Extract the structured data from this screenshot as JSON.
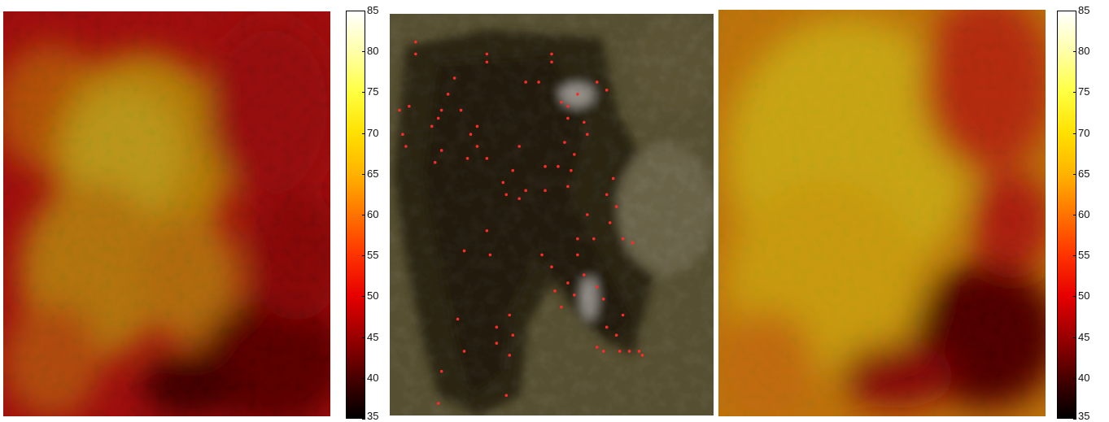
{
  "chart_data": [
    {
      "type": "heatmap",
      "description_panel": "left",
      "colormap": "hot",
      "range": [
        35,
        85
      ],
      "colorbar_ticks": [
        35,
        40,
        45,
        50,
        55,
        60,
        65,
        70,
        75,
        80,
        85
      ],
      "tick_labels": [
        "35",
        "40",
        "45",
        "50",
        "55",
        "60",
        "65",
        "70",
        "75",
        "80",
        "85"
      ]
    },
    {
      "type": "scatter",
      "description_panel": "center",
      "marker_color": "#ff2a2a",
      "points": [
        [
          0.08,
          0.07
        ],
        [
          0.08,
          0.1
        ],
        [
          0.3,
          0.1
        ],
        [
          0.3,
          0.12
        ],
        [
          0.5,
          0.1
        ],
        [
          0.5,
          0.12
        ],
        [
          0.2,
          0.16
        ],
        [
          0.18,
          0.2
        ],
        [
          0.06,
          0.23
        ],
        [
          0.03,
          0.24
        ],
        [
          0.16,
          0.24
        ],
        [
          0.15,
          0.26
        ],
        [
          0.22,
          0.24
        ],
        [
          0.42,
          0.17
        ],
        [
          0.46,
          0.17
        ],
        [
          0.64,
          0.17
        ],
        [
          0.67,
          0.19
        ],
        [
          0.53,
          0.22
        ],
        [
          0.55,
          0.23
        ],
        [
          0.58,
          0.2
        ],
        [
          0.04,
          0.3
        ],
        [
          0.05,
          0.33
        ],
        [
          0.13,
          0.28
        ],
        [
          0.16,
          0.34
        ],
        [
          0.27,
          0.28
        ],
        [
          0.25,
          0.3
        ],
        [
          0.27,
          0.33
        ],
        [
          0.24,
          0.36
        ],
        [
          0.14,
          0.37
        ],
        [
          0.3,
          0.36
        ],
        [
          0.4,
          0.33
        ],
        [
          0.55,
          0.26
        ],
        [
          0.6,
          0.27
        ],
        [
          0.61,
          0.3
        ],
        [
          0.54,
          0.32
        ],
        [
          0.57,
          0.35
        ],
        [
          0.48,
          0.38
        ],
        [
          0.52,
          0.38
        ],
        [
          0.56,
          0.39
        ],
        [
          0.38,
          0.39
        ],
        [
          0.35,
          0.42
        ],
        [
          0.42,
          0.44
        ],
        [
          0.36,
          0.45
        ],
        [
          0.4,
          0.46
        ],
        [
          0.48,
          0.44
        ],
        [
          0.55,
          0.43
        ],
        [
          0.69,
          0.41
        ],
        [
          0.67,
          0.45
        ],
        [
          0.61,
          0.5
        ],
        [
          0.68,
          0.52
        ],
        [
          0.7,
          0.48
        ],
        [
          0.58,
          0.56
        ],
        [
          0.63,
          0.56
        ],
        [
          0.72,
          0.56
        ],
        [
          0.75,
          0.57
        ],
        [
          0.3,
          0.54
        ],
        [
          0.23,
          0.59
        ],
        [
          0.31,
          0.6
        ],
        [
          0.47,
          0.6
        ],
        [
          0.5,
          0.63
        ],
        [
          0.58,
          0.6
        ],
        [
          0.6,
          0.65
        ],
        [
          0.55,
          0.67
        ],
        [
          0.51,
          0.69
        ],
        [
          0.57,
          0.7
        ],
        [
          0.64,
          0.68
        ],
        [
          0.66,
          0.71
        ],
        [
          0.53,
          0.73
        ],
        [
          0.67,
          0.78
        ],
        [
          0.72,
          0.75
        ],
        [
          0.7,
          0.8
        ],
        [
          0.37,
          0.75
        ],
        [
          0.21,
          0.76
        ],
        [
          0.33,
          0.78
        ],
        [
          0.38,
          0.8
        ],
        [
          0.33,
          0.82
        ],
        [
          0.23,
          0.84
        ],
        [
          0.37,
          0.85
        ],
        [
          0.64,
          0.83
        ],
        [
          0.66,
          0.84
        ],
        [
          0.71,
          0.84
        ],
        [
          0.74,
          0.84
        ],
        [
          0.77,
          0.84
        ],
        [
          0.78,
          0.85
        ],
        [
          0.16,
          0.89
        ],
        [
          0.36,
          0.95
        ],
        [
          0.15,
          0.97
        ]
      ]
    },
    {
      "type": "heatmap",
      "description_panel": "right",
      "colormap": "hot",
      "range": [
        35,
        85
      ],
      "colorbar_ticks": [
        35,
        40,
        45,
        50,
        55,
        60,
        65,
        70,
        75,
        80,
        85
      ],
      "tick_labels": [
        "35",
        "40",
        "45",
        "50",
        "55",
        "60",
        "65",
        "70",
        "75",
        "80",
        "85"
      ]
    }
  ]
}
